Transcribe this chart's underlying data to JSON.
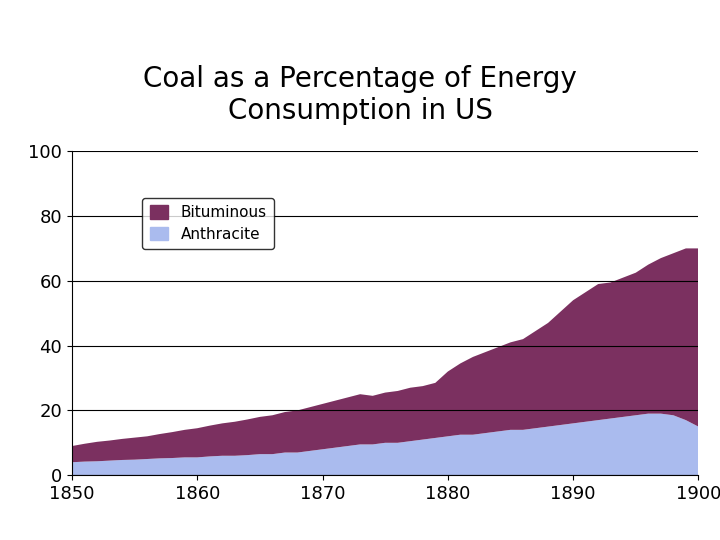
{
  "title": "Coal as a Percentage of Energy\nConsumption in US",
  "title_fontsize": 20,
  "years": [
    1850,
    1851,
    1852,
    1853,
    1854,
    1855,
    1856,
    1857,
    1858,
    1859,
    1860,
    1861,
    1862,
    1863,
    1864,
    1865,
    1866,
    1867,
    1868,
    1869,
    1870,
    1871,
    1872,
    1873,
    1874,
    1875,
    1876,
    1877,
    1878,
    1879,
    1880,
    1881,
    1882,
    1883,
    1884,
    1885,
    1886,
    1887,
    1888,
    1889,
    1890,
    1891,
    1892,
    1893,
    1894,
    1895,
    1896,
    1897,
    1898,
    1899,
    1900
  ],
  "bituminous": [
    5.0,
    5.5,
    6.0,
    6.2,
    6.5,
    6.8,
    7.0,
    7.5,
    8.0,
    8.5,
    9.0,
    9.5,
    10.0,
    10.5,
    11.0,
    11.5,
    12.0,
    12.5,
    13.0,
    13.5,
    14.0,
    14.5,
    15.0,
    15.5,
    15.0,
    15.5,
    16.0,
    16.5,
    16.5,
    17.0,
    20.0,
    22.0,
    24.0,
    25.0,
    26.0,
    27.0,
    28.0,
    30.0,
    32.0,
    35.0,
    38.0,
    40.0,
    42.0,
    42.0,
    43.0,
    44.0,
    46.0,
    48.0,
    50.0,
    53.0,
    55.0
  ],
  "anthracite": [
    4.0,
    4.2,
    4.3,
    4.5,
    4.7,
    4.8,
    5.0,
    5.2,
    5.3,
    5.5,
    5.5,
    5.8,
    6.0,
    6.0,
    6.2,
    6.5,
    6.5,
    7.0,
    7.0,
    7.5,
    8.0,
    8.5,
    9.0,
    9.5,
    9.5,
    10.0,
    10.0,
    10.5,
    11.0,
    11.5,
    12.0,
    12.5,
    12.5,
    13.0,
    13.5,
    14.0,
    14.0,
    14.5,
    15.0,
    15.5,
    16.0,
    16.5,
    17.0,
    17.5,
    18.0,
    18.5,
    19.0,
    19.0,
    18.5,
    17.0,
    15.0
  ],
  "bituminous_color": "#7B3060",
  "anthracite_color": "#AABBEE",
  "xlim": [
    1850,
    1900
  ],
  "ylim": [
    0,
    100
  ],
  "yticks": [
    0,
    20,
    40,
    60,
    80,
    100
  ],
  "xticks": [
    1850,
    1860,
    1870,
    1880,
    1890,
    1900
  ],
  "background_color": "#ffffff"
}
